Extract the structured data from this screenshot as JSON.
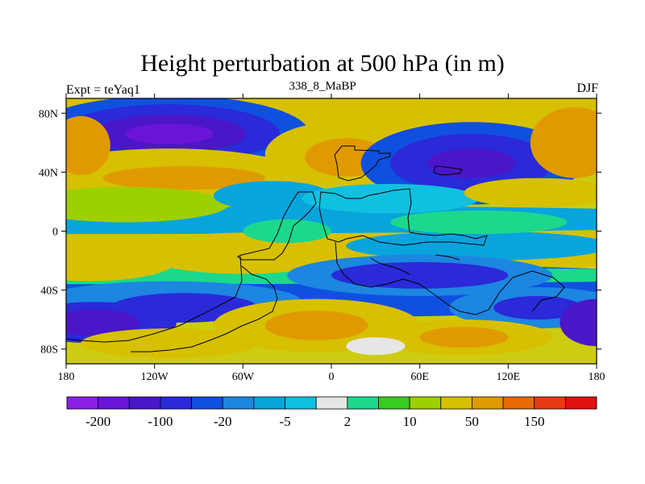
{
  "header": {
    "title": "Height perturbation at 500 hPa (in m)",
    "left": "Expt = teYaq1",
    "center": "338_8_MaBP",
    "right": "DJF"
  },
  "chart_data": {
    "type": "heatmap",
    "title": "Height perturbation at 500 hPa (in m)",
    "subtitle_left": "Expt = teYaq1",
    "subtitle_center": "338_8_MaBP",
    "subtitle_right": "DJF",
    "xlim": [
      -180,
      180
    ],
    "ylim": [
      -90,
      90
    ],
    "x_ticks": [
      {
        "value": -180,
        "label": "180"
      },
      {
        "value": -120,
        "label": "120W"
      },
      {
        "value": -60,
        "label": "60W"
      },
      {
        "value": 0,
        "label": "0"
      },
      {
        "value": 60,
        "label": "60E"
      },
      {
        "value": 120,
        "label": "120E"
      },
      {
        "value": 180,
        "label": "180"
      }
    ],
    "y_ticks": [
      {
        "value": 80,
        "label": "80N"
      },
      {
        "value": 40,
        "label": "40N"
      },
      {
        "value": 0,
        "label": "0"
      },
      {
        "value": -40,
        "label": "40S"
      },
      {
        "value": -80,
        "label": "80S"
      }
    ],
    "colorbar": {
      "colors": [
        "#8a1fe6",
        "#6a14d8",
        "#4a16c8",
        "#2a2ad8",
        "#1050e0",
        "#1c86e0",
        "#08a4dc",
        "#10c0e0",
        "#e6e6e6",
        "#1cd88c",
        "#38cc20",
        "#9ed000",
        "#d6c000",
        "#e09a00",
        "#e66a00",
        "#e83a10",
        "#e01010"
      ],
      "labels": [
        "-200",
        "-100",
        "-20",
        "-5",
        "2",
        "10",
        "50",
        "150"
      ]
    },
    "field": {
      "units": "m",
      "features": [
        {
          "lon": -110,
          "lat": 65,
          "value": -110
        },
        {
          "lon": -170,
          "lat": 60,
          "value": 80
        },
        {
          "lon": 10,
          "lat": 50,
          "value": 90
        },
        {
          "lon": 90,
          "lat": 45,
          "value": -110
        },
        {
          "lon": 160,
          "lat": 60,
          "value": 70
        },
        {
          "lon": -150,
          "lat": 25,
          "value": 35
        },
        {
          "lon": -100,
          "lat": 35,
          "value": 60
        },
        {
          "lon": -165,
          "lat": -20,
          "value": 40
        },
        {
          "lon": -80,
          "lat": -20,
          "value": 30
        },
        {
          "lon": -100,
          "lat": -50,
          "value": -70
        },
        {
          "lon": -160,
          "lat": -62,
          "value": -100
        },
        {
          "lon": 60,
          "lat": -28,
          "value": -60
        },
        {
          "lon": 150,
          "lat": 25,
          "value": 20
        },
        {
          "lon": -10,
          "lat": -65,
          "value": 70
        },
        {
          "lon": 80,
          "lat": -70,
          "value": 60
        },
        {
          "lon": 175,
          "lat": -62,
          "value": -120
        }
      ]
    }
  }
}
